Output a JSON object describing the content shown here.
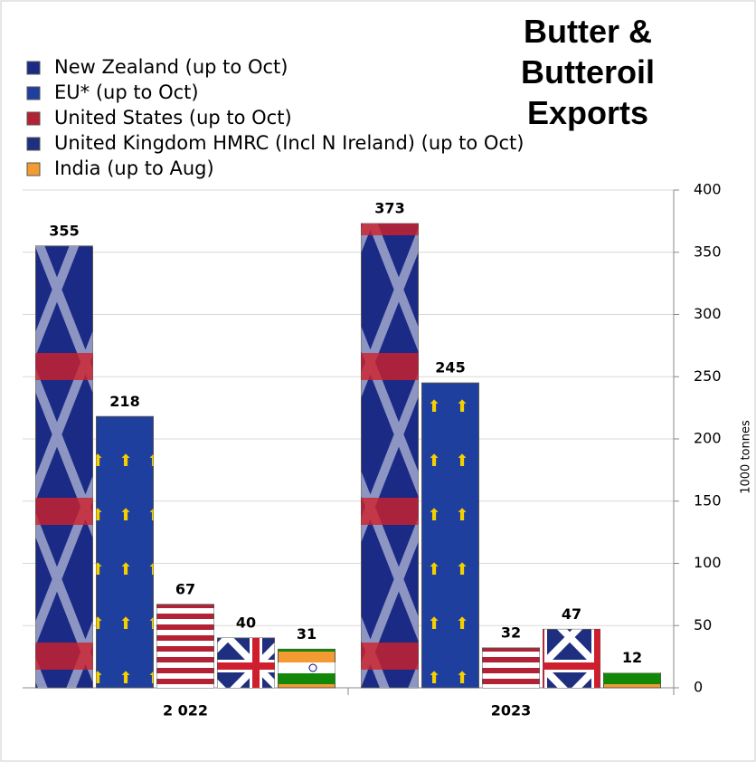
{
  "chart_data": {
    "type": "bar",
    "title": "Butter & Butteroil Exports",
    "y_label": "1000 tonnes",
    "categories": [
      "2 022",
      "2023"
    ],
    "series": [
      {
        "name": "New Zealand (up to Oct)",
        "color": "#1b2a85",
        "values": [
          355,
          373
        ]
      },
      {
        "name": "EU* (up to Oct)",
        "color": "#1f3f9e",
        "values": [
          218,
          245
        ]
      },
      {
        "name": "United States (up to Oct)",
        "color": "#b22234",
        "values": [
          67,
          32
        ]
      },
      {
        "name": "United Kingdom HMRC (Incl N Ireland) (up to Oct)",
        "color": "#1f2f80",
        "values": [
          40,
          47
        ]
      },
      {
        "name": "India (up to Aug)",
        "color": "#f39a33",
        "values": [
          31,
          12
        ]
      }
    ],
    "ylim": [
      0,
      400
    ],
    "yticks": [
      0,
      50,
      100,
      150,
      200,
      250,
      300,
      350,
      400
    ],
    "grid": true
  }
}
